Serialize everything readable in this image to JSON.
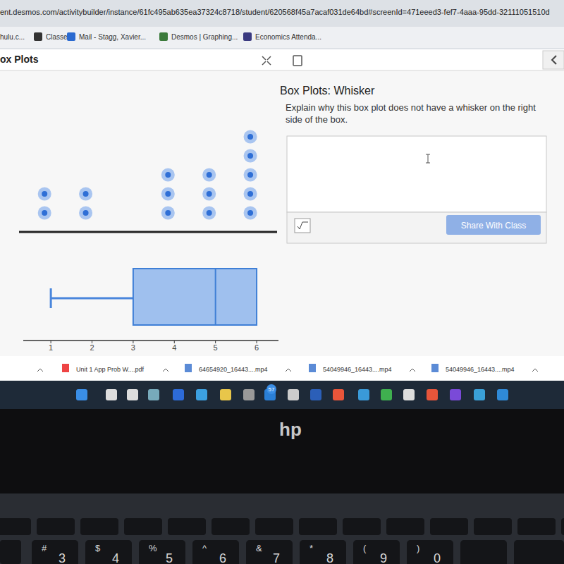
{
  "browser": {
    "url": "ent.desmos.com/activitybuilder/instance/61fc495ab635ea37324c8718/student/620568f45a7acaf031de64bd#screenId=471eeed3-fef7-4aaa-95dd-32111051510d",
    "bookmarks": [
      "hulu.c...",
      "Classes",
      "Mail - Stagg, Xavier...",
      "Desmos | Graphing...",
      "Economics Attenda..."
    ]
  },
  "header": {
    "title": "ox Plots"
  },
  "screen": {
    "title": "Box Plots: Whisker",
    "prompt": "Explain why this box plot does not have a whisker on the right side of the box.",
    "button": "Share With Class"
  },
  "chart_data": [
    {
      "type": "dot",
      "x": [
        1,
        2,
        4,
        5,
        6
      ],
      "values": [
        2,
        2,
        3,
        3,
        5
      ],
      "xlim": [
        0.38,
        6.65
      ],
      "tick_labels": false,
      "color": "#2f6fd6"
    },
    {
      "type": "box",
      "min": 1,
      "q1": 3,
      "median": 5,
      "q3": 6,
      "max": 6,
      "xlim": [
        0.33,
        6.53
      ],
      "xticks": [
        1,
        2,
        3,
        4,
        5,
        6
      ],
      "color": "#9fc0ee"
    }
  ],
  "downloads": [
    "Unit 1 App Prob W....pdf",
    "64654920_16443....mp4",
    "54049946_16443....mp4",
    "54049946_16443....mp4"
  ],
  "taskbar": {
    "badge": "57"
  },
  "logo": "hp",
  "keyboard": [
    {
      "top": "#",
      "bottom": "3"
    },
    {
      "top": "$",
      "bottom": "4"
    },
    {
      "top": "%",
      "bottom": "5"
    },
    {
      "top": "^",
      "bottom": "6"
    },
    {
      "top": "&",
      "bottom": "7"
    },
    {
      "top": "*",
      "bottom": "8"
    },
    {
      "top": "(",
      "bottom": "9"
    },
    {
      "top": ")",
      "bottom": "0"
    }
  ]
}
